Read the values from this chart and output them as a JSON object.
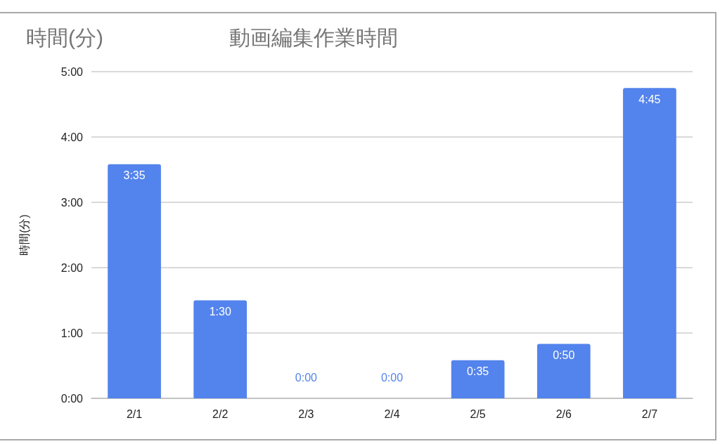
{
  "chart_data": {
    "type": "bar",
    "title": "時間(分)",
    "subtitle": "動画編集作業時間",
    "ylabel": "時間(分)",
    "categories": [
      "2/1",
      "2/2",
      "2/3",
      "2/4",
      "2/5",
      "2/6",
      "2/7"
    ],
    "values": [
      3.5833,
      1.5,
      0,
      0,
      0.5833,
      0.8333,
      4.75
    ],
    "value_labels": [
      "3:35",
      "1:30",
      "0:00",
      "0:00",
      "0:35",
      "0:50",
      "4:45"
    ],
    "color": "#5383ec",
    "ylim": [
      0,
      5
    ],
    "yticks": [
      {
        "value": 0,
        "label": "0:00"
      },
      {
        "value": 1,
        "label": "1:00"
      },
      {
        "value": 2,
        "label": "2:00"
      },
      {
        "value": 3,
        "label": "3:00"
      },
      {
        "value": 4,
        "label": "4:00"
      },
      {
        "value": 5,
        "label": "5:00"
      }
    ],
    "grid": "y"
  }
}
